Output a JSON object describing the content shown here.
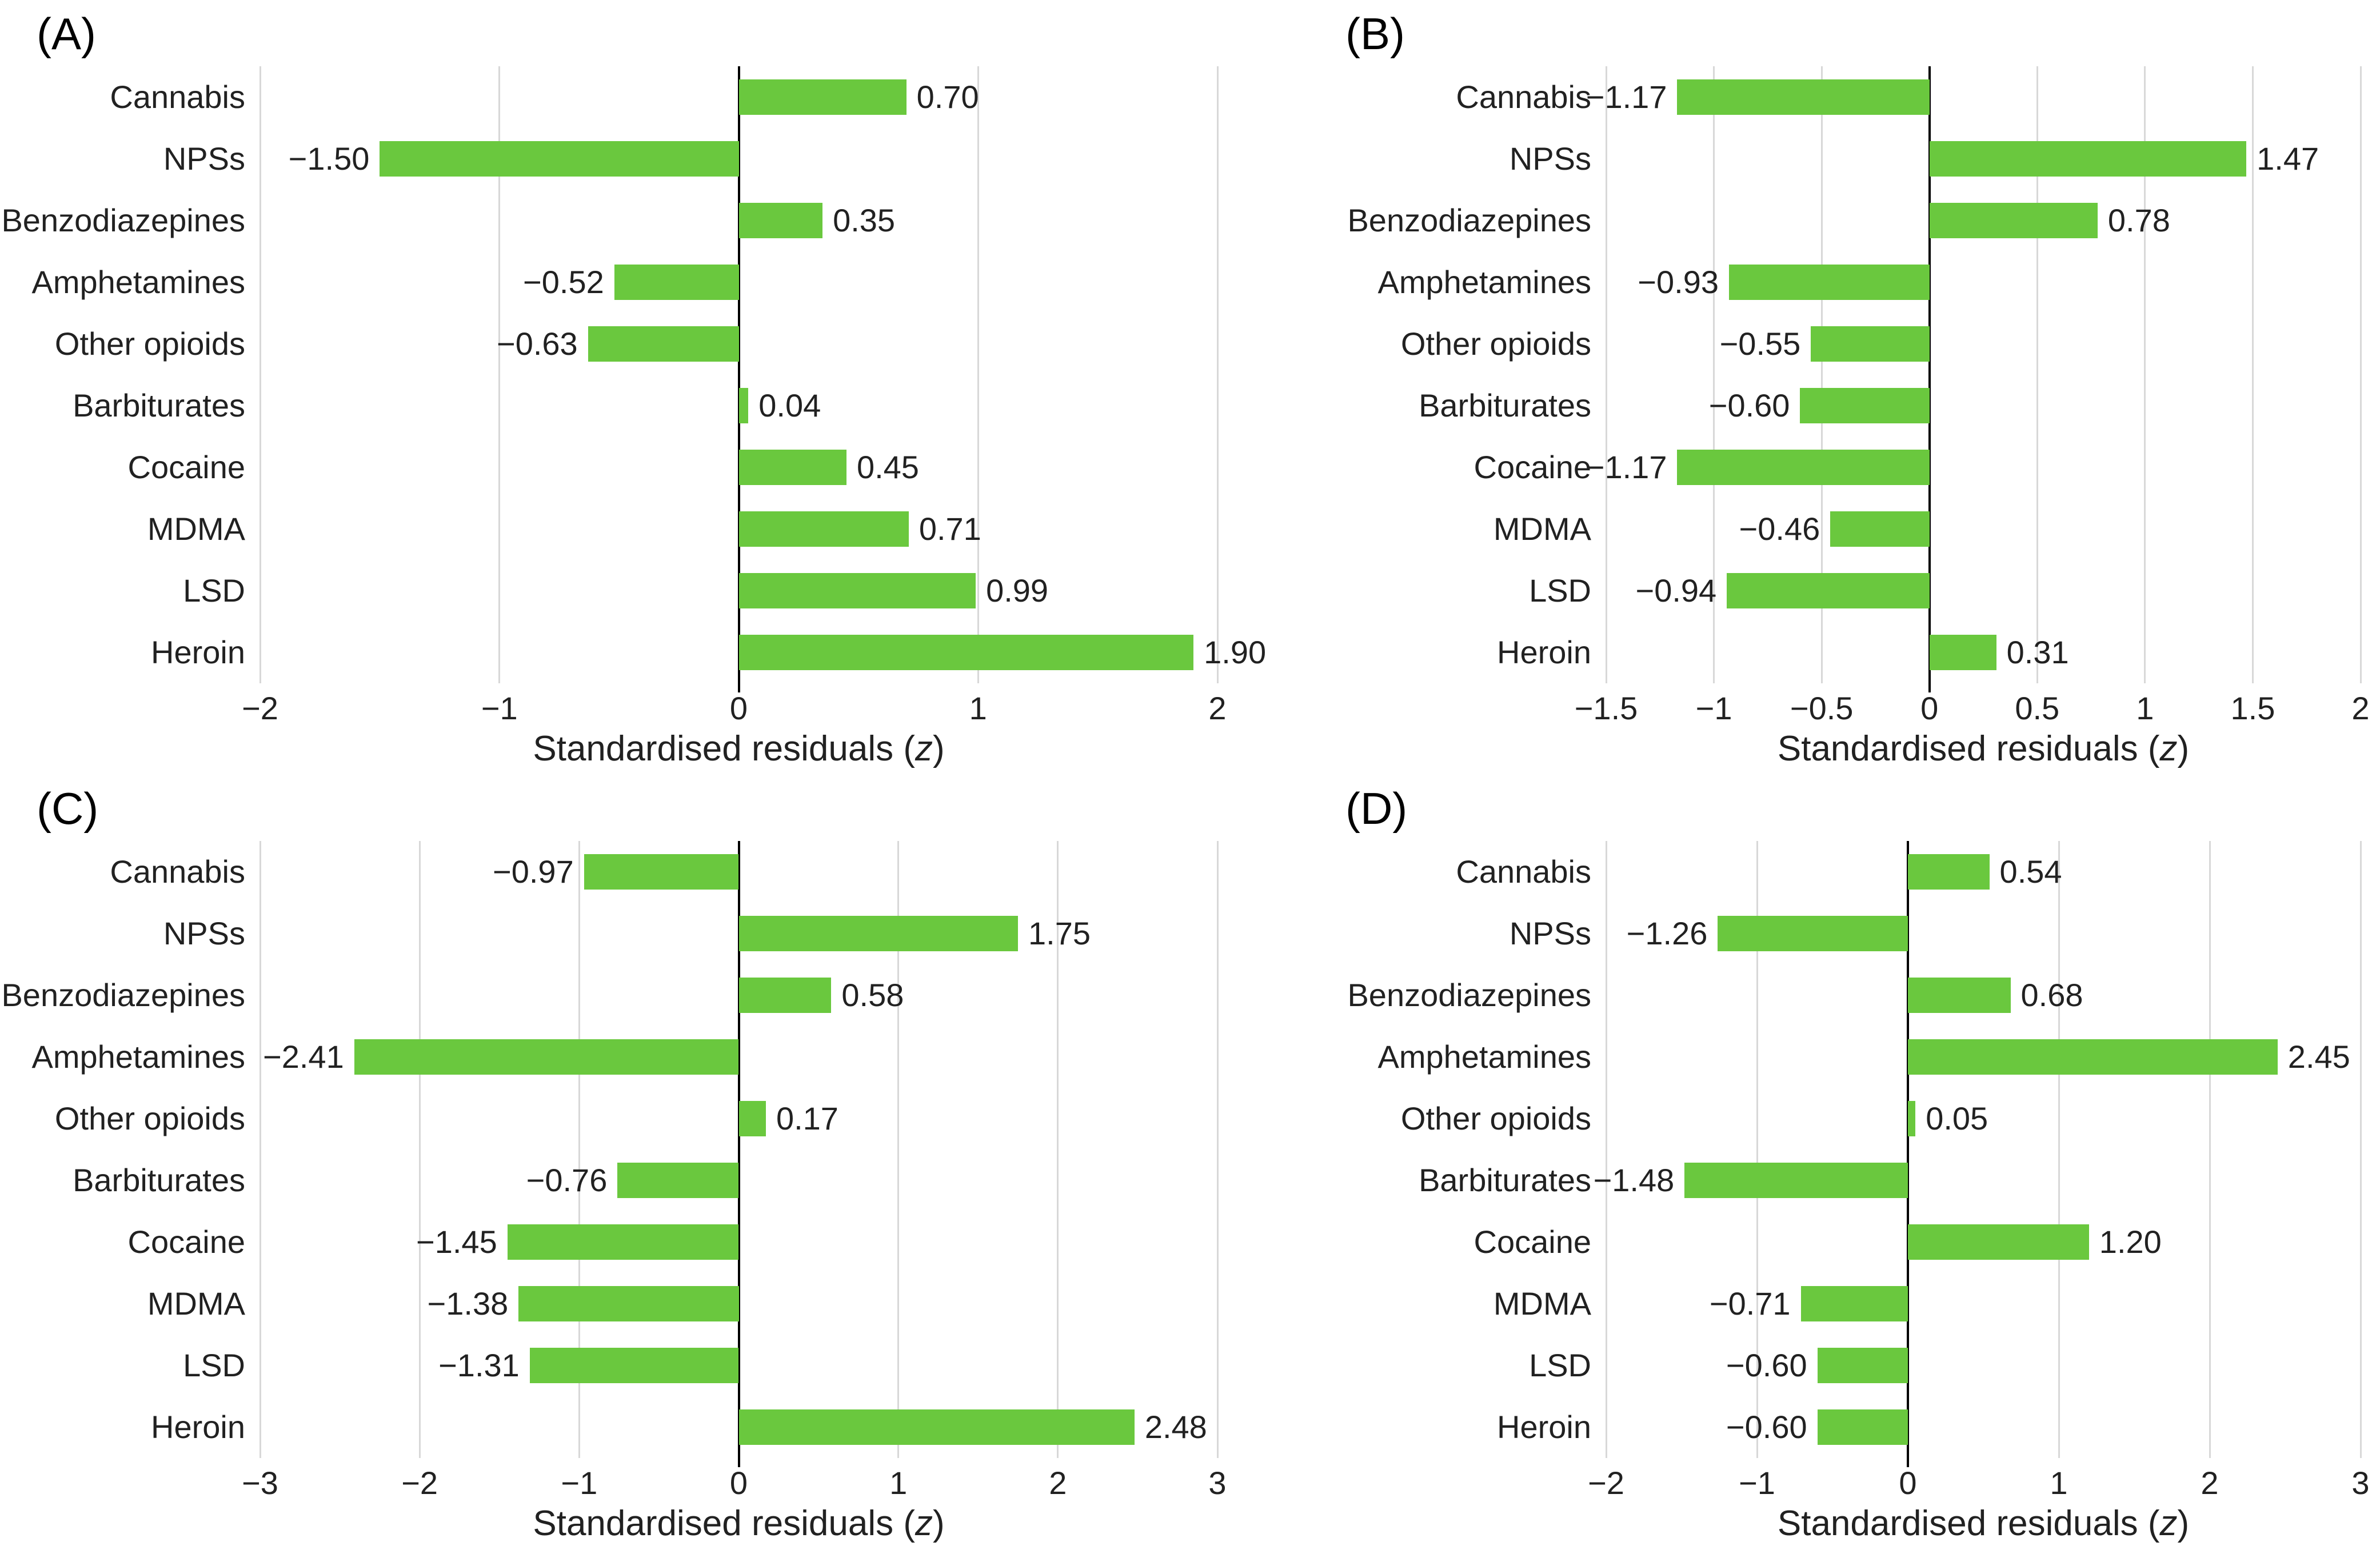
{
  "style": {
    "background": "#ffffff",
    "bar_color": "#6AC83E",
    "gridline_color": "#D8D8D8",
    "zero_line_color": "#000000",
    "text_color": "#212121",
    "letter_color": "#000000"
  },
  "strings": {
    "xlabel_prefix": "Standardised residuals (",
    "xlabel_var": "z",
    "xlabel_suffix": ")"
  },
  "chart_data": [
    {
      "type": "bar",
      "orientation": "horizontal",
      "panel": "(A)",
      "xlabel": "Standardised residuals (z)",
      "categories": [
        "Cannabis",
        "NPSs",
        "Benzodiazepines",
        "Amphetamines",
        "Other opioids",
        "Barbiturates",
        "Cocaine",
        "MDMA",
        "LSD",
        "Heroin"
      ],
      "values": [
        0.7,
        -1.5,
        0.35,
        -0.52,
        -0.63,
        0.04,
        0.45,
        0.71,
        0.99,
        1.9
      ],
      "value_labels": [
        "0.70",
        "−1.50",
        "0.35",
        "−0.52",
        "−0.63",
        "0.04",
        "0.45",
        "0.71",
        "0.99",
        "1.90"
      ],
      "xlim": [
        -2,
        2
      ],
      "xticks": [
        -2,
        -1,
        0,
        1,
        2
      ],
      "xtick_labels": [
        "−2",
        "−1",
        "0",
        "1",
        "2"
      ],
      "grid": true
    },
    {
      "type": "bar",
      "orientation": "horizontal",
      "panel": "(B)",
      "xlabel": "Standardised residuals (z)",
      "categories": [
        "Cannabis",
        "NPSs",
        "Benzodiazepines",
        "Amphetamines",
        "Other opioids",
        "Barbiturates",
        "Cocaine",
        "MDMA",
        "LSD",
        "Heroin"
      ],
      "values": [
        -1.17,
        1.47,
        0.78,
        -0.93,
        -0.55,
        -0.6,
        -1.17,
        -0.46,
        -0.94,
        0.31
      ],
      "value_labels": [
        "−1.17",
        "1.47",
        "0.78",
        "−0.93",
        "−0.55",
        "−0.60",
        "−1.17",
        "−0.46",
        "−0.94",
        "0.31"
      ],
      "xlim": [
        -1.5,
        2
      ],
      "xticks": [
        -1.5,
        -1,
        -0.5,
        0,
        0.5,
        1,
        1.5,
        2
      ],
      "xtick_labels": [
        "−1.5",
        "−1",
        "−0.5",
        "0",
        "0.5",
        "1",
        "1.5",
        "2"
      ],
      "grid": true
    },
    {
      "type": "bar",
      "orientation": "horizontal",
      "panel": "(C)",
      "xlabel": "Standardised residuals (z)",
      "categories": [
        "Cannabis",
        "NPSs",
        "Benzodiazepines",
        "Amphetamines",
        "Other opioids",
        "Barbiturates",
        "Cocaine",
        "MDMA",
        "LSD",
        "Heroin"
      ],
      "values": [
        -0.97,
        1.75,
        0.58,
        -2.41,
        0.17,
        -0.76,
        -1.45,
        -1.38,
        -1.31,
        2.48
      ],
      "value_labels": [
        "−0.97",
        "1.75",
        "0.58",
        "−2.41",
        "0.17",
        "−0.76",
        "−1.45",
        "−1.38",
        "−1.31",
        "2.48"
      ],
      "xlim": [
        -3,
        3
      ],
      "xticks": [
        -3,
        -2,
        -1,
        0,
        1,
        2,
        3
      ],
      "xtick_labels": [
        "−3",
        "−2",
        "−1",
        "0",
        "1",
        "2",
        "3"
      ],
      "grid": true
    },
    {
      "type": "bar",
      "orientation": "horizontal",
      "panel": "(D)",
      "xlabel": "Standardised residuals (z)",
      "categories": [
        "Cannabis",
        "NPSs",
        "Benzodiazepines",
        "Amphetamines",
        "Other opioids",
        "Barbiturates",
        "Cocaine",
        "MDMA",
        "LSD",
        "Heroin"
      ],
      "values": [
        0.54,
        -1.26,
        0.68,
        2.45,
        0.05,
        -1.48,
        1.2,
        -0.71,
        -0.6,
        -0.6
      ],
      "value_labels": [
        "0.54",
        "−1.26",
        "0.68",
        "2.45",
        "0.05",
        "−1.48",
        "1.20",
        "−0.71",
        "−0.60",
        "−0.60"
      ],
      "xlim": [
        -2,
        3
      ],
      "xticks": [
        -2,
        -1,
        0,
        1,
        2,
        3
      ],
      "xtick_labels": [
        "−2",
        "−1",
        "0",
        "1",
        "2",
        "3"
      ],
      "grid": true
    }
  ]
}
